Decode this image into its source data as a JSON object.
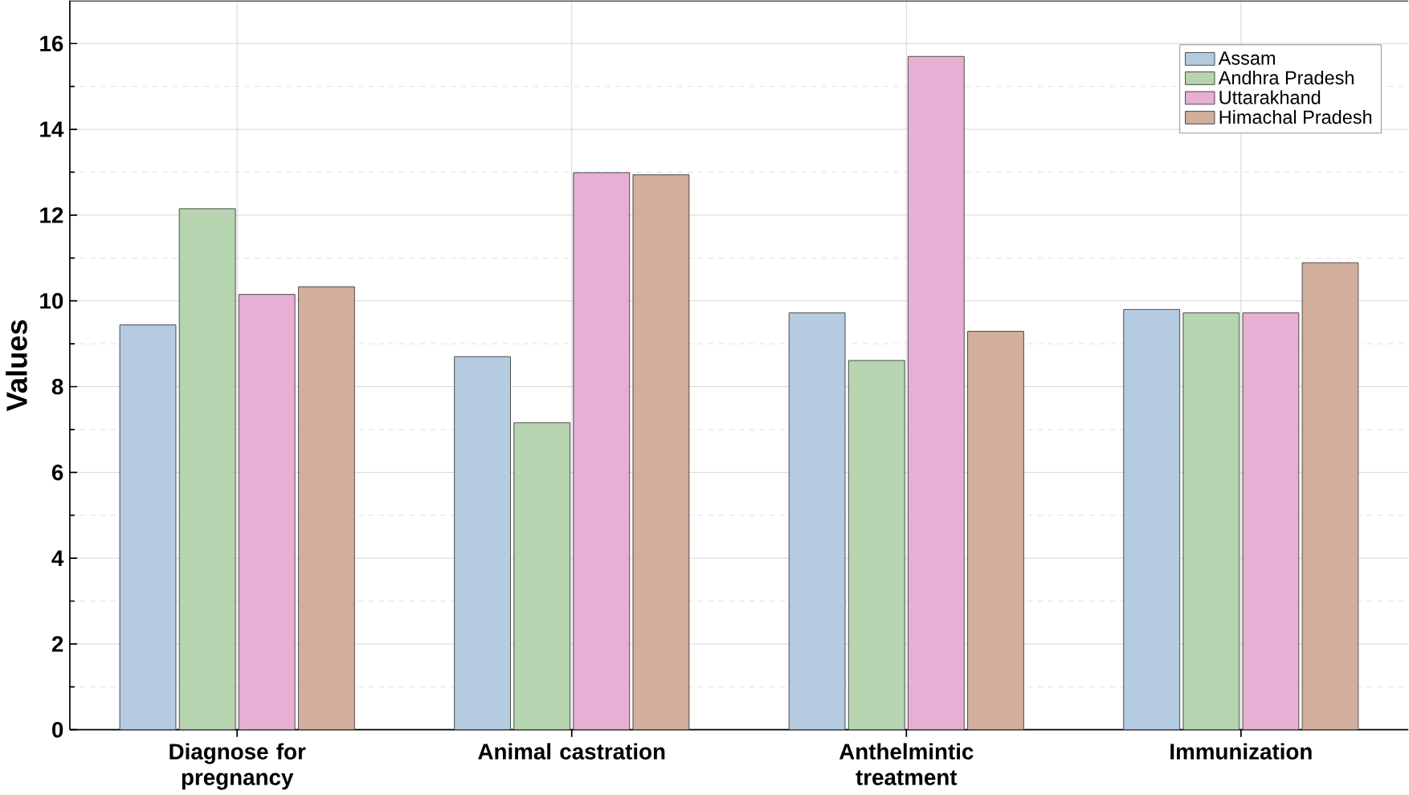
{
  "chart_data": {
    "type": "bar",
    "ylabel": "Values",
    "categories": [
      "Diagnose for pregnancy",
      "Animal castration",
      "Anthelmintic treatment",
      "Immunization"
    ],
    "series": [
      {
        "name": "Assam",
        "color": "#b4cbe0",
        "values": [
          9.44,
          8.7,
          9.72,
          9.8
        ]
      },
      {
        "name": "Andhra Pradesh",
        "color": "#b7d4b0",
        "values": [
          12.15,
          7.16,
          8.61,
          9.72
        ]
      },
      {
        "name": "Uttarakhand",
        "color": "#e6afd3",
        "values": [
          10.15,
          12.99,
          15.7,
          9.72
        ]
      },
      {
        "name": "Himachal Pradesh",
        "color": "#d2ae9c",
        "values": [
          10.33,
          12.94,
          9.29,
          10.89
        ]
      }
    ],
    "ylim": [
      0,
      17
    ],
    "yticks": [
      0,
      2,
      4,
      6,
      8,
      10,
      12,
      14,
      16
    ],
    "grid": true,
    "legend": "top right"
  }
}
